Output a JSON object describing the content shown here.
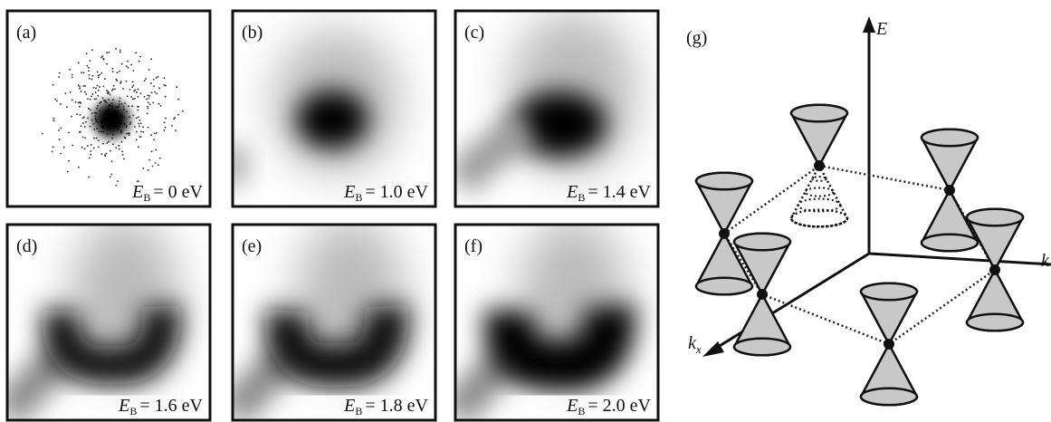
{
  "panels": [
    {
      "label": "(a)",
      "energy_symbol": "E",
      "energy_subscript": "B",
      "energy_value": "= 0 eV"
    },
    {
      "label": "(b)",
      "energy_symbol": "E",
      "energy_subscript": "B",
      "energy_value": "= 1.0 eV"
    },
    {
      "label": "(c)",
      "energy_symbol": "E",
      "energy_subscript": "B",
      "energy_value": "= 1.4 eV"
    },
    {
      "label": "(d)",
      "energy_symbol": "E",
      "energy_subscript": "B",
      "energy_value": "= 1.6 eV"
    },
    {
      "label": "(e)",
      "energy_symbol": "E",
      "energy_subscript": "B",
      "energy_value": "= 1.8 eV"
    },
    {
      "label": "(f)",
      "energy_symbol": "E",
      "energy_subscript": "B",
      "energy_value": "= 2.0 eV"
    }
  ],
  "diagram": {
    "label": "(g)",
    "axis_energy": "E",
    "axis_ky": "k",
    "axis_kx": "k",
    "axis_kx_subscript": "x"
  }
}
